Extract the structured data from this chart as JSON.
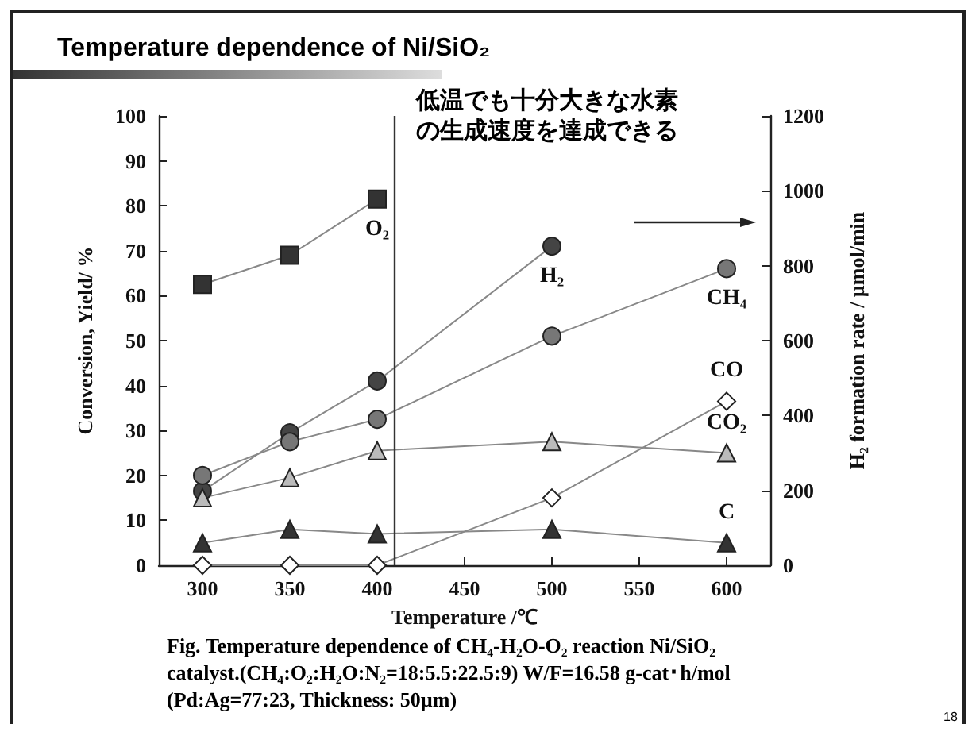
{
  "chart_data": {
    "type": "line",
    "title": "Temperature dependence of Ni/SiO₂",
    "xlabel": "Temperature /℃",
    "ylabel": "Conversion, Yield/ %",
    "y2label": "H₂ formation rate / µmol/min",
    "xlim": [
      275,
      625
    ],
    "xticks": [
      300,
      350,
      400,
      450,
      500,
      550,
      600
    ],
    "ylim": [
      0,
      100
    ],
    "yticks": [
      0,
      10,
      20,
      30,
      40,
      50,
      60,
      70,
      80,
      90,
      100
    ],
    "y2lim": [
      0,
      1200
    ],
    "y2ticks": [
      0,
      200,
      400,
      600,
      800,
      1000,
      1200
    ],
    "grid": false,
    "legend": false,
    "line_style": "solid",
    "ref_lines": [
      {
        "axis": "x",
        "value": 410,
        "label": null,
        "color": "#333333"
      }
    ],
    "series": [
      {
        "name": "O₂",
        "color": "#333333",
        "marker": "square",
        "x": [
          300,
          350,
          400
        ],
        "values": [
          62.5,
          69,
          81.5
        ]
      },
      {
        "name": "H₂",
        "color": "#444444",
        "marker": "circle",
        "x": [
          300,
          350,
          400,
          500
        ],
        "values": [
          16.5,
          29.5,
          41,
          71
        ]
      },
      {
        "name": "CH₄",
        "color": "#777777",
        "marker": "circle",
        "x": [
          300,
          350,
          400,
          500,
          600
        ],
        "values": [
          20,
          27.5,
          32.5,
          51,
          66
        ]
      },
      {
        "name": "CO₂",
        "color": "#bbbbbb",
        "marker": "triangle",
        "x": [
          300,
          350,
          400,
          500,
          600
        ],
        "values": [
          15,
          19.5,
          25.5,
          27.5,
          25
        ]
      },
      {
        "name": "CO",
        "color": "#ffffff",
        "marker": "diamond",
        "x": [
          300,
          350,
          400,
          500,
          600
        ],
        "values": [
          0,
          0,
          0,
          15,
          36.5
        ]
      },
      {
        "name": "C",
        "color": "#333333",
        "marker": "triangle",
        "x": [
          300,
          350,
          400,
          500,
          600
        ],
        "values": [
          5,
          8,
          7,
          8,
          5
        ]
      }
    ],
    "annotations": [
      "低温でも十分大きな水素の生成速度を達成できる",
      "Fig. Temperature dependence of CH₄-H₂O-O₂ reaction Ni/SiO₂\ncatalyst.(CH₄:O₂:H₂O:N₂=18:5.5:22.5:9) W/F=16.58 g-cat･h/mol\n(Pd:Ag=77:23, Thickness: 50µm)",
      "18"
    ]
  }
}
